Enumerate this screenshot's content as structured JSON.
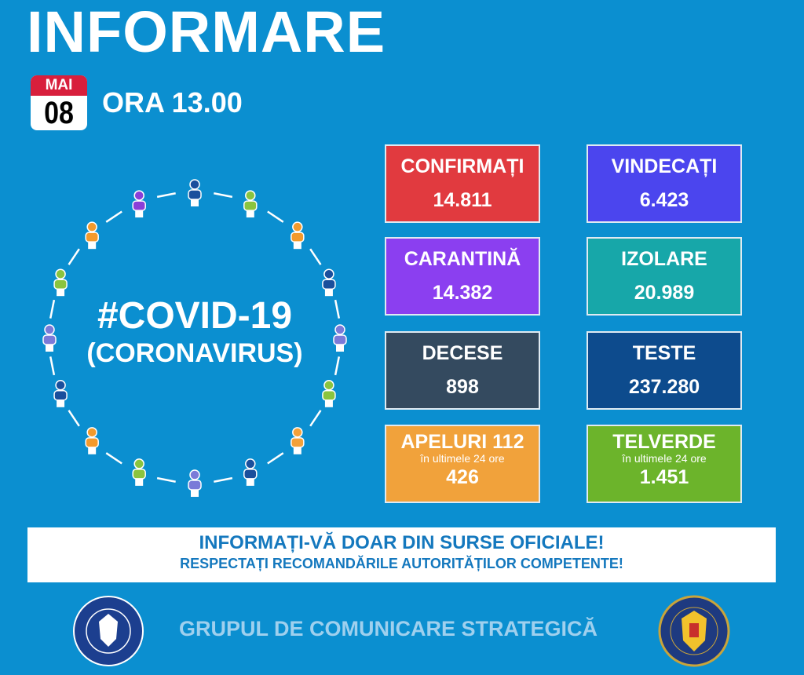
{
  "header": {
    "title": "INFORMARE",
    "month": "MAI",
    "day": "08",
    "time": "ORA 13.00"
  },
  "center": {
    "hashtag": "#COVID-19",
    "subtitle": "(CORONAVIRUS)"
  },
  "stats": [
    {
      "label": "CONFIRMAȚI",
      "value": "14.811",
      "color": "#e13a3f"
    },
    {
      "label": "VINDECAȚI",
      "value": "6.423",
      "color": "#4b45ee"
    },
    {
      "label": "CARANTINĂ",
      "value": "14.382",
      "color": "#8b3ff0"
    },
    {
      "label": "IZOLARE",
      "value": "20.989",
      "color": "#17a7a9"
    },
    {
      "label": "DECESE",
      "value": "898",
      "color": "#344a5f"
    },
    {
      "label": "TESTE",
      "value": "237.280",
      "color": "#0d4b8d"
    },
    {
      "label": "APELURI 112",
      "sub": "în ultimele 24 ore",
      "value": "426",
      "color": "#f1a23b"
    },
    {
      "label": "TELVERDE",
      "sub": "în ultimele 24 ore",
      "value": "1.451",
      "color": "#6cb42b"
    }
  ],
  "banner": {
    "line1": "INFORMAȚI-VĂ DOAR DIN SURSE OFICIALE!",
    "line2": "RESPECTAȚI RECOMANDĂRILE AUTORITĂȚILOR COMPETENTE!"
  },
  "footer": {
    "text": "GRUPUL DE COMUNICARE STRATEGICĂ",
    "logo_left": "GUVERNUL ROMÂNIEI",
    "logo_right": "DEPARTAMENTUL PENTRU SITUAȚII DE URGENȚĂ M.A.I."
  },
  "figure_colors": [
    "#1a4f9c",
    "#8ac43f",
    "#f39a2c",
    "#1a4f9c",
    "#7a7ad8",
    "#8ac43f",
    "#f3a13a",
    "#1a4f9c",
    "#7a7ad8",
    "#8ac43f",
    "#f39a2c",
    "#1a4f9c",
    "#7a7ad8",
    "#8ac43f",
    "#f39a2c",
    "#8a3fd8"
  ]
}
